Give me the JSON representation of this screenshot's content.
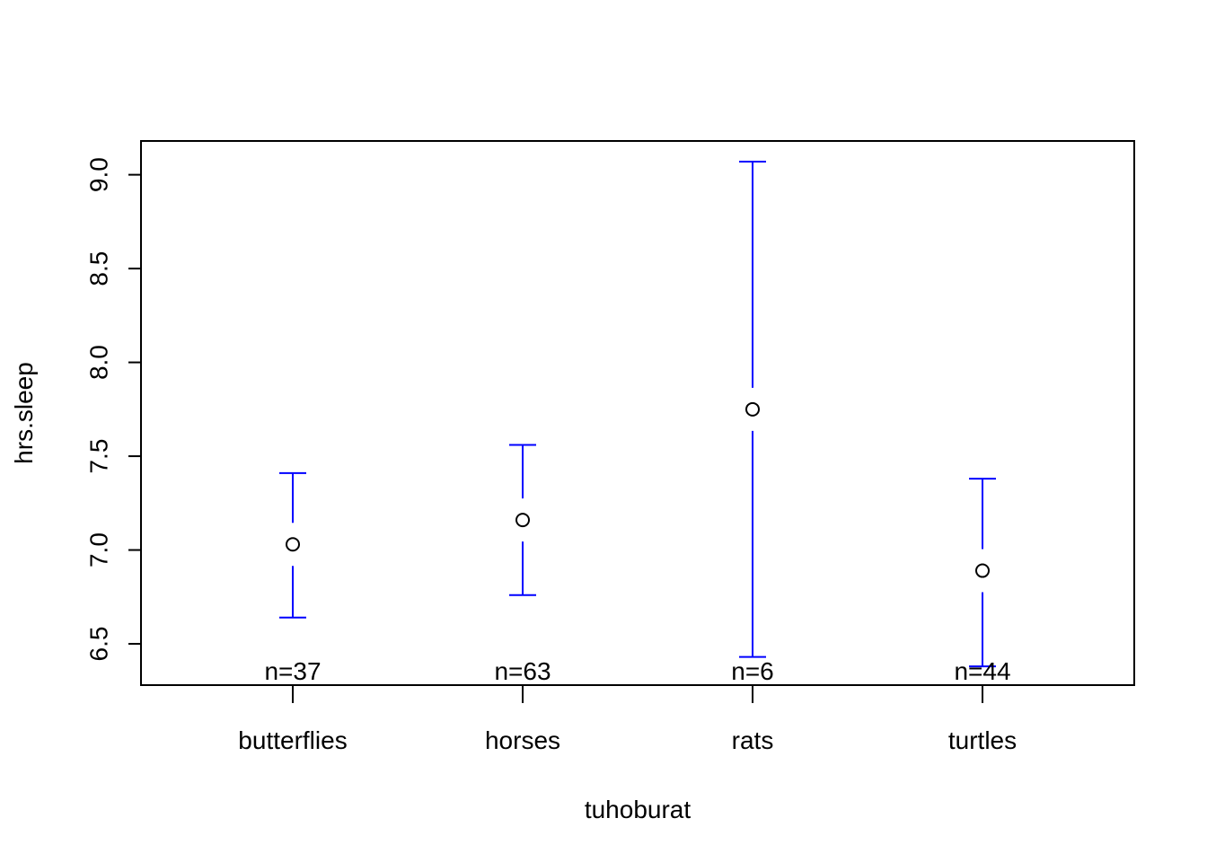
{
  "chart_data": {
    "type": "scatter",
    "title": "",
    "xlabel": "tuhoburat",
    "ylabel": "hrs.sleep",
    "categories": [
      "butterflies",
      "horses",
      "rats",
      "turtles"
    ],
    "means": [
      7.03,
      7.16,
      7.75,
      6.89
    ],
    "lower": [
      6.64,
      6.76,
      6.43,
      6.38
    ],
    "upper": [
      7.41,
      7.56,
      9.07,
      7.38
    ],
    "n_labels": [
      "n=37",
      "n=63",
      "n=6",
      "n=44"
    ],
    "y_ticks": [
      "6.5",
      "7.0",
      "7.5",
      "8.0",
      "8.5",
      "9.0"
    ],
    "ylim": [
      6.28,
      9.18
    ],
    "grid": false,
    "legend": "none",
    "colors": {
      "error_bars": "#0000ff",
      "points": "#000000",
      "axes": "#000000"
    }
  }
}
